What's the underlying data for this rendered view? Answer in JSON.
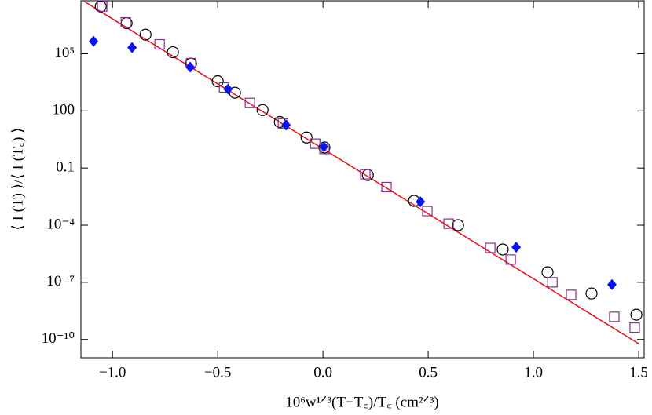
{
  "chart_data": {
    "type": "scatter",
    "x_label": "10⁶w¹ᐟ³(T−T꜀)/T꜀ (cm²ᐟ³)",
    "y_label": "⟨ I (T) ⟩/⟨ I (T꜀) ⟩",
    "y_log": true,
    "xlim": [
      -1.15,
      1.526
    ],
    "ylim": [
      1.1e-11,
      60000000.0
    ],
    "xticks": [
      {
        "value": -1,
        "label": "−1.0"
      },
      {
        "value": -0.5,
        "label": "−0.5"
      },
      {
        "value": 0,
        "label": "0.0"
      },
      0.5,
      {
        "value": 1,
        "label": "1.0"
      },
      1.5
    ],
    "yticks": [
      {
        "value": 1e-10,
        "label": "10⁻¹⁰"
      },
      {
        "value": 1e-07,
        "label": "10⁻⁷"
      },
      {
        "value": 0.0001,
        "label": "10⁻⁴"
      },
      0.1,
      100,
      {
        "value": 100000,
        "label": "10⁵"
      }
    ],
    "series": [
      {
        "marker": "line",
        "color": "#e8141c",
        "x": [
          -1.15,
          1.5
        ],
        "values": [
          71000000.0,
          6e-11
        ]
      },
      {
        "marker": "circle",
        "color": "#000000",
        "x": [
          -1.056,
          -0.933,
          -0.843,
          -0.713,
          -0.627,
          -0.5,
          -0.418,
          -0.287,
          -0.205,
          -0.078,
          0.007,
          0.213,
          0.433,
          0.642,
          0.854,
          1.067,
          1.276,
          1.489
        ],
        "values": [
          30000000.0,
          4000000.0,
          1000000.0,
          120000.0,
          30000.0,
          3600,
          900,
          110,
          26,
          4,
          1.2,
          0.043,
          0.0019,
          0.0001,
          5.3e-06,
          3.4e-07,
          2.6e-08,
          2e-09
        ]
      },
      {
        "marker": "square",
        "color": "#8b2c8b",
        "x": [
          -1.049,
          -0.937,
          -0.776,
          -0.627,
          -0.47,
          -0.347,
          -0.19,
          -0.037,
          0.007,
          0.201,
          0.302,
          0.496,
          0.597,
          0.795,
          0.892,
          1.09,
          1.179,
          1.384,
          1.481
        ],
        "values": [
          30000000.0,
          4400000.0,
          310000.0,
          32000.0,
          1700,
          260,
          22,
          1.9,
          1,
          0.047,
          0.01,
          0.00055,
          0.00012,
          6.4e-06,
          1.56e-06,
          1e-07,
          2.2e-08,
          1.55e-09,
          4.2e-10
        ]
      },
      {
        "marker": "diamond",
        "color": "#0a14f0",
        "x": [
          -1.09,
          -0.907,
          -0.631,
          -0.451,
          -0.175,
          0.004,
          0.463,
          0.918,
          1.373
        ],
        "values": [
          450000.0,
          210000.0,
          20000.0,
          1400,
          18,
          1.3,
          0.0017,
          7e-06,
          7.6e-08
        ]
      }
    ]
  }
}
